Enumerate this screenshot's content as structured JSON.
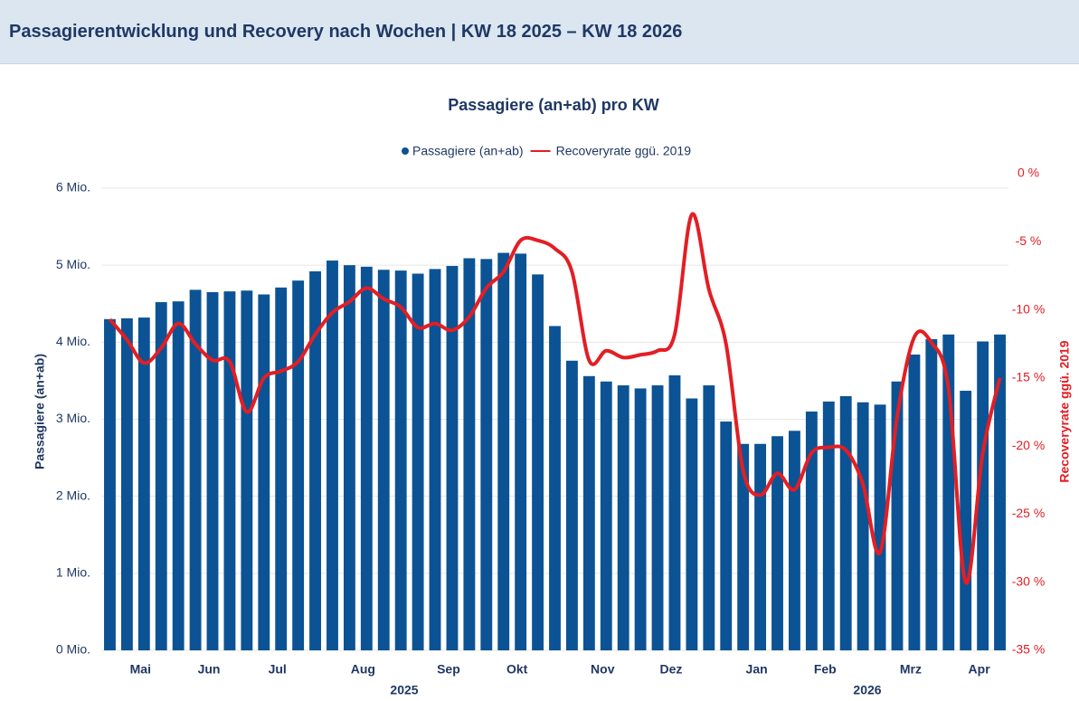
{
  "header": {
    "title": "Passagierentwicklung und Recovery nach Wochen | KW 18 2025 – KW 18 2026"
  },
  "chart_data": {
    "type": "bar",
    "title": "Passagiere (an+ab) pro KW",
    "ylabel": "Passagiere (an+ab)",
    "y2label": "Recoveryrate ggü. 2019",
    "legend": "top",
    "grid": true,
    "categories": [
      null,
      null,
      "Mai",
      null,
      null,
      null,
      "Jun",
      null,
      null,
      null,
      "Jul",
      null,
      null,
      null,
      null,
      "Aug",
      null,
      null,
      null,
      null,
      "Sep",
      null,
      null,
      null,
      "Okt",
      null,
      null,
      null,
      null,
      "Nov",
      null,
      null,
      null,
      "Dez",
      null,
      null,
      null,
      null,
      "Jan",
      null,
      null,
      null,
      "Feb",
      null,
      null,
      null,
      null,
      "Mrz",
      null,
      null,
      null,
      "Apr",
      null
    ],
    "x_groups": [
      "2025",
      "2026"
    ],
    "ylim": [
      0,
      6000000
    ],
    "yticks": [
      {
        "value": 0,
        "label": "0 Mio."
      },
      {
        "value": 1000000,
        "label": "1 Mio."
      },
      {
        "value": 2000000,
        "label": "2 Mio."
      },
      {
        "value": 3000000,
        "label": "3 Mio."
      },
      {
        "value": 4000000,
        "label": "4 Mio."
      },
      {
        "value": 5000000,
        "label": "5 Mio."
      },
      {
        "value": 6000000,
        "label": "6 Mio."
      }
    ],
    "y2lim": [
      -35,
      0
    ],
    "y2ticks": [
      {
        "value": 0,
        "label": "0 %"
      },
      {
        "value": -5,
        "label": "-5 %"
      },
      {
        "value": -10,
        "label": "-10 %"
      },
      {
        "value": -15,
        "label": "-15 %"
      },
      {
        "value": -20,
        "label": "-20 %"
      },
      {
        "value": -25,
        "label": "-25 %"
      },
      {
        "value": -30,
        "label": "-30 %"
      },
      {
        "value": -35,
        "label": "-35 %"
      }
    ],
    "series": [
      {
        "name": "Passagiere (an+ab)",
        "type": "bar",
        "color": "#0b5394",
        "values": [
          4300000,
          4310000,
          4320000,
          4520000,
          4530000,
          4680000,
          4650000,
          4660000,
          4670000,
          4620000,
          4710000,
          4800000,
          4920000,
          5060000,
          5000000,
          4980000,
          4940000,
          4930000,
          4890000,
          4950000,
          4990000,
          5090000,
          5080000,
          5160000,
          5150000,
          4880000,
          4210000,
          3760000,
          3560000,
          3490000,
          3440000,
          3400000,
          3440000,
          3570000,
          3270000,
          3440000,
          2970000,
          2680000,
          2680000,
          2780000,
          2850000,
          3100000,
          3230000,
          3300000,
          3220000,
          3190000,
          3490000,
          3840000,
          4040000,
          4100000,
          3370000,
          4010000,
          4100000
        ]
      },
      {
        "name": "Recoveryrate ggü. 2019",
        "type": "line",
        "axis": "y2",
        "color": "#e31e24",
        "values": [
          -10.7,
          -12.2,
          -13.9,
          -12.8,
          -11.0,
          -12.5,
          -13.7,
          -13.8,
          -17.5,
          -15.0,
          -14.5,
          -13.8,
          -11.8,
          -10.2,
          -9.4,
          -8.4,
          -9.2,
          -9.8,
          -11.3,
          -11.0,
          -11.5,
          -10.5,
          -8.4,
          -7.2,
          -4.9,
          -4.9,
          -5.5,
          -7.2,
          -13.7,
          -13.0,
          -13.5,
          -13.3,
          -13.0,
          -11.8,
          -3.0,
          -8.5,
          -12.5,
          -21.8,
          -23.6,
          -22.0,
          -23.2,
          -20.5,
          -20.1,
          -20.3,
          -22.8,
          -27.8,
          -17.8,
          -12.0,
          -12.4,
          -15.8,
          -30.0,
          -20.5,
          -15.0
        ]
      }
    ]
  }
}
